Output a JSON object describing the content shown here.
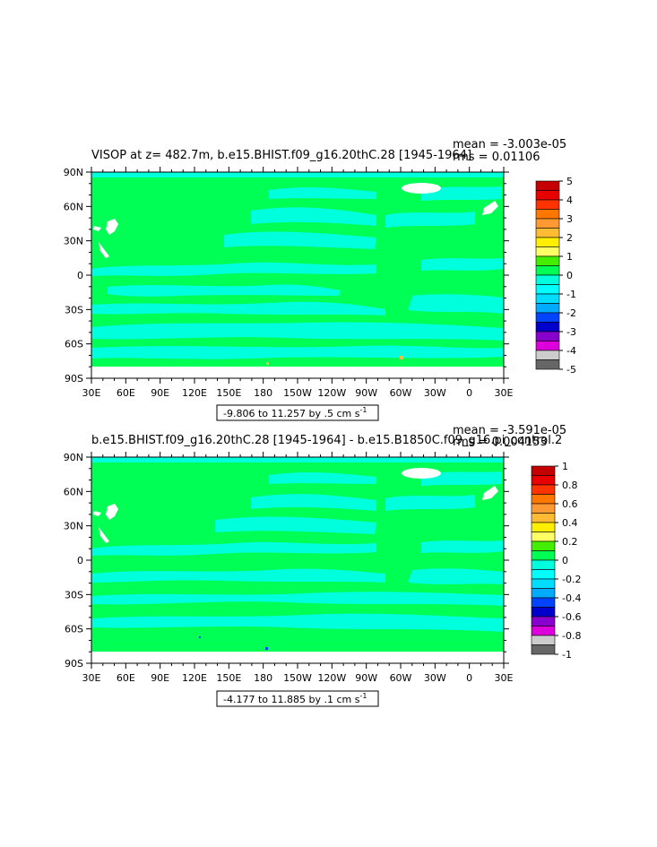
{
  "panels": [
    {
      "title": "VISOP at z= 482.7m, b.e15.BHIST.f09_g16.20thC.28 [1945-1964]",
      "mean": "mean = -3.003e-05",
      "rms": "rms = 0.01106",
      "range_label": "-9.806 to 11.257 by .5 cm s",
      "range_sup": "-1",
      "colorbar_labels": [
        "5",
        "4",
        "3",
        "2",
        "1",
        "0",
        "-1",
        "-2",
        "-3",
        "-4",
        "-5"
      ]
    },
    {
      "title": "b.e15.BHIST.f09_g16.20thC.28 [1945-1964] - b.e15.B1850C.f09_g16.pi_control.2",
      "mean": "mean = -3.591e-05",
      "rms": "rms = 0.004153",
      "range_label": "-4.177 to 11.885 by .1 cm s",
      "range_sup": "-1",
      "colorbar_labels": [
        "1",
        "0.8",
        "0.6",
        "0.4",
        "0.2",
        "0",
        "-0.2",
        "-0.4",
        "-0.6",
        "-0.8",
        "-1"
      ]
    }
  ],
  "lat_labels": [
    "90N",
    "60N",
    "30N",
    "0",
    "30S",
    "60S",
    "90S"
  ],
  "lon_labels": [
    "30E",
    "60E",
    "90E",
    "120E",
    "150E",
    "180",
    "150W",
    "120W",
    "90W",
    "60W",
    "30W",
    "0",
    "30E"
  ],
  "colors": {
    "ocean_main": "#00ff55",
    "ocean_neg": "#00ffdd",
    "land_mask": "#ffffff",
    "scale": [
      "#c40000",
      "#e80000",
      "#ff3300",
      "#ff7700",
      "#ff9933",
      "#ffbb33",
      "#ffee00",
      "#ffff66",
      "#44ee00",
      "#00ff55",
      "#00ffdd",
      "#00ffff",
      "#00ddff",
      "#00aaff",
      "#0044ff",
      "#0000cc",
      "#8800cc",
      "#dd00dd",
      "#cccccc",
      "#666666"
    ]
  }
}
